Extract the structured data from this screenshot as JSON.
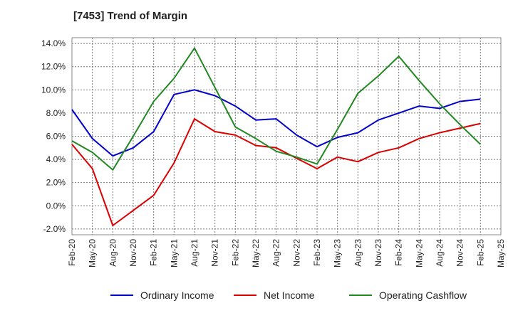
{
  "chart_data": {
    "type": "line",
    "title": "[7453]  Trend of Margin",
    "categories": [
      "Feb-20",
      "May-20",
      "Aug-20",
      "Nov-20",
      "Feb-21",
      "May-21",
      "Aug-21",
      "Nov-21",
      "Feb-22",
      "May-22",
      "Aug-22",
      "Nov-22",
      "Feb-23",
      "May-23",
      "Aug-23",
      "Nov-23",
      "Feb-24",
      "May-24",
      "Aug-24",
      "Nov-24",
      "Feb-25",
      "May-25"
    ],
    "yticks": [
      "14.0%",
      "12.0%",
      "10.0%",
      "8.0%",
      "6.0%",
      "4.0%",
      "2.0%",
      "0.0%",
      "-2.0%"
    ],
    "ylim": [
      -2.5,
      14.5
    ],
    "grid": true,
    "legend_position": "bottom",
    "series": [
      {
        "name": "Ordinary Income",
        "color": "#0000cc",
        "values": [
          8.3,
          5.8,
          4.3,
          5.0,
          6.4,
          9.6,
          10.0,
          9.5,
          8.6,
          7.4,
          7.5,
          6.1,
          5.1,
          5.9,
          6.3,
          7.4,
          8.0,
          8.6,
          8.4,
          9.0,
          9.2,
          null
        ]
      },
      {
        "name": "Net Income",
        "color": "#dd0000",
        "values": [
          5.3,
          3.2,
          -1.7,
          -0.4,
          0.9,
          3.7,
          7.5,
          6.4,
          6.1,
          5.2,
          5.0,
          4.1,
          3.2,
          4.2,
          3.8,
          4.6,
          5.0,
          5.8,
          6.3,
          6.7,
          7.1,
          null
        ]
      },
      {
        "name": "Operating Cashflow",
        "color": "#228822",
        "values": [
          5.6,
          4.6,
          3.1,
          6.0,
          9.0,
          11.0,
          13.6,
          10.2,
          6.8,
          5.8,
          4.7,
          4.2,
          3.6,
          6.6,
          9.7,
          11.2,
          12.9,
          10.8,
          8.8,
          7.0,
          5.3,
          null
        ]
      }
    ]
  }
}
